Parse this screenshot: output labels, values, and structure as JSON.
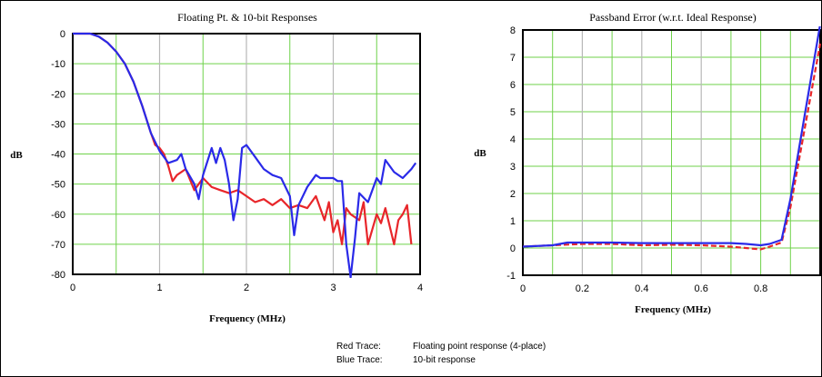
{
  "chart_data": [
    {
      "type": "line",
      "title": "Floating Pt. & 10-bit Responses",
      "xlabel": "Frequency (MHz)",
      "ylabel": "dB",
      "xlim": [
        0,
        4
      ],
      "ylim": [
        -80,
        0
      ],
      "xticks": [
        0,
        1,
        2,
        3,
        4
      ],
      "yticks": [
        0,
        -10,
        -20,
        -30,
        -40,
        -50,
        -60,
        -70,
        -80
      ],
      "grid": true,
      "series": [
        {
          "color": "#e8262a",
          "x": [
            0,
            0.2,
            0.3,
            0.4,
            0.5,
            0.6,
            0.7,
            0.8,
            0.9,
            0.95,
            1.0,
            1.05,
            1.1,
            1.15,
            1.2,
            1.3,
            1.4,
            1.5,
            1.6,
            1.7,
            1.8,
            1.9,
            2.0,
            2.1,
            2.2,
            2.3,
            2.4,
            2.5,
            2.6,
            2.7,
            2.8,
            2.9,
            2.95,
            3.0,
            3.05,
            3.1,
            3.15,
            3.2,
            3.3,
            3.35,
            3.4,
            3.5,
            3.55,
            3.6,
            3.7,
            3.75,
            3.8,
            3.85,
            3.9
          ],
          "y": [
            0,
            0,
            -1,
            -3,
            -6,
            -10,
            -16,
            -24,
            -33,
            -37,
            -38,
            -40,
            -44,
            -49,
            -47,
            -45,
            -52,
            -48,
            -51,
            -52,
            -53,
            -52,
            -54,
            -56,
            -55,
            -57,
            -55,
            -58,
            -57,
            -58,
            -54,
            -62,
            -56,
            -66,
            -62,
            -70,
            -58,
            -60,
            -62,
            -56,
            -70,
            -60,
            -63,
            -58,
            -70,
            -62,
            -60,
            -57,
            -70
          ]
        },
        {
          "color": "#2a2ae8",
          "x": [
            0,
            0.2,
            0.3,
            0.4,
            0.5,
            0.6,
            0.7,
            0.8,
            0.9,
            0.95,
            1.0,
            1.1,
            1.2,
            1.25,
            1.3,
            1.4,
            1.45,
            1.5,
            1.6,
            1.65,
            1.7,
            1.75,
            1.8,
            1.85,
            1.9,
            1.95,
            2.0,
            2.1,
            2.2,
            2.3,
            2.4,
            2.5,
            2.55,
            2.6,
            2.7,
            2.8,
            2.85,
            2.9,
            3.0,
            3.05,
            3.1,
            3.15,
            3.2,
            3.25,
            3.3,
            3.4,
            3.5,
            3.55,
            3.6,
            3.7,
            3.8,
            3.9,
            3.95
          ],
          "y": [
            0,
            0,
            -1,
            -3,
            -6,
            -10,
            -16,
            -24,
            -33,
            -36,
            -39,
            -43,
            -42,
            -40,
            -45,
            -50,
            -55,
            -47,
            -38,
            -43,
            -38,
            -42,
            -50,
            -62,
            -55,
            -38,
            -37,
            -41,
            -45,
            -47,
            -48,
            -54,
            -67,
            -57,
            -51,
            -47,
            -48,
            -48,
            -48,
            -49,
            -49,
            -70,
            -81,
            -68,
            -53,
            -56,
            -48,
            -50,
            -42,
            -46,
            -48,
            -45,
            -43
          ]
        }
      ]
    },
    {
      "type": "line",
      "title": "Passband Error (w.r.t. Ideal Response)",
      "xlabel": "Frequency (MHz)",
      "ylabel": "dB",
      "xlim": [
        0,
        1
      ],
      "ylim": [
        -1,
        8
      ],
      "xticks": [
        0,
        0.2,
        0.4,
        0.6,
        0.8
      ],
      "yticks": [
        8,
        7,
        6,
        5,
        4,
        3,
        2,
        1,
        0,
        -1
      ],
      "grid": true,
      "series": [
        {
          "color": "#e8262a",
          "x": [
            0,
            0.1,
            0.2,
            0.3,
            0.4,
            0.5,
            0.6,
            0.7,
            0.75,
            0.8,
            0.83,
            0.87,
            0.9,
            0.95,
            1.0
          ],
          "y": [
            0.05,
            0.1,
            0.15,
            0.15,
            0.1,
            0.12,
            0.1,
            0.05,
            0.0,
            -0.05,
            0.05,
            0.2,
            1.5,
            4.5,
            7.5
          ]
        },
        {
          "color": "#2a2ae8",
          "x": [
            0,
            0.1,
            0.15,
            0.2,
            0.3,
            0.4,
            0.5,
            0.6,
            0.7,
            0.75,
            0.8,
            0.83,
            0.87,
            0.9,
            0.95,
            1.0
          ],
          "y": [
            0.05,
            0.1,
            0.2,
            0.2,
            0.2,
            0.18,
            0.18,
            0.18,
            0.18,
            0.15,
            0.1,
            0.15,
            0.3,
            1.8,
            5.0,
            8.2
          ]
        }
      ]
    }
  ],
  "notes": {
    "red_key": "Red Trace:",
    "red_text": "Floating point response (4-place)",
    "blue_key": "Blue Trace:",
    "blue_text": "10-bit response"
  }
}
